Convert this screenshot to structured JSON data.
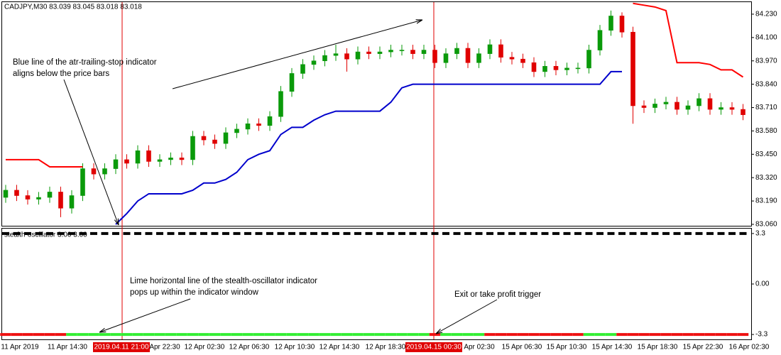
{
  "chart_data": [
    {
      "type": "candlestick",
      "title": "CADJPY,M30  83.039 83.045 83.018 83.018",
      "up_color": "#0a9a0a",
      "down_color": "#e00000",
      "open": [
        83.21,
        83.25,
        83.22,
        83.2,
        83.21,
        83.24,
        83.15,
        83.22,
        83.37,
        83.34,
        83.37,
        83.42,
        83.4,
        83.47,
        83.41,
        83.42,
        83.43,
        83.42,
        83.55,
        83.53,
        83.51,
        83.57,
        83.59,
        83.62,
        83.61,
        83.66,
        83.8,
        83.9,
        83.95,
        83.97,
        84.0,
        84.01,
        83.98,
        84.02,
        84.01,
        84.02,
        84.03,
        84.03,
        84.01,
        84.03,
        83.96,
        84.01,
        84.04,
        83.96,
        84.01,
        84.06,
        83.99,
        83.98,
        83.96,
        83.91,
        83.94,
        83.92,
        83.93,
        83.93,
        84.03,
        84.14,
        84.22,
        84.13,
        83.72,
        83.71,
        83.73,
        83.74,
        83.7,
        83.72,
        83.76,
        83.7,
        83.71,
        83.7
      ],
      "high": [
        83.28,
        83.28,
        83.25,
        83.24,
        83.27,
        83.27,
        83.25,
        83.4,
        83.4,
        83.4,
        83.45,
        83.45,
        83.5,
        83.5,
        83.45,
        83.46,
        83.46,
        83.58,
        83.58,
        83.56,
        83.6,
        83.62,
        83.65,
        83.65,
        83.69,
        83.83,
        83.93,
        83.98,
        84.0,
        84.03,
        84.06,
        84.04,
        84.05,
        84.05,
        84.05,
        84.06,
        84.06,
        84.06,
        84.06,
        84.06,
        84.04,
        84.07,
        84.07,
        84.04,
        84.09,
        84.09,
        84.02,
        84.01,
        83.99,
        83.97,
        83.97,
        83.96,
        83.96,
        84.06,
        84.17,
        84.25,
        84.24,
        84.16,
        83.75,
        83.76,
        83.77,
        83.77,
        83.75,
        83.79,
        83.79,
        83.74,
        83.74,
        83.73
      ],
      "low": [
        83.18,
        83.19,
        83.17,
        83.17,
        83.18,
        83.1,
        83.12,
        83.19,
        83.31,
        83.31,
        83.34,
        83.37,
        83.37,
        83.38,
        83.38,
        83.39,
        83.39,
        83.39,
        83.5,
        83.48,
        83.48,
        83.54,
        83.56,
        83.58,
        83.58,
        83.63,
        83.77,
        83.87,
        83.92,
        83.94,
        83.97,
        83.91,
        83.95,
        83.98,
        83.98,
        83.99,
        84.0,
        83.98,
        83.98,
        83.93,
        83.93,
        83.98,
        83.93,
        83.93,
        83.98,
        83.96,
        83.95,
        83.93,
        83.88,
        83.88,
        83.89,
        83.89,
        83.9,
        83.9,
        84.0,
        84.11,
        84.1,
        83.62,
        83.68,
        83.68,
        83.7,
        83.67,
        83.67,
        83.69,
        83.67,
        83.67,
        83.67,
        83.64
      ],
      "close": [
        83.25,
        83.22,
        83.2,
        83.21,
        83.24,
        83.15,
        83.22,
        83.37,
        83.34,
        83.37,
        83.42,
        83.4,
        83.47,
        83.41,
        83.42,
        83.43,
        83.42,
        83.55,
        83.53,
        83.51,
        83.57,
        83.59,
        83.62,
        83.61,
        83.66,
        83.8,
        83.9,
        83.95,
        83.97,
        84.0,
        84.01,
        83.98,
        84.02,
        84.01,
        84.02,
        84.03,
        84.03,
        84.01,
        84.03,
        83.96,
        84.01,
        84.04,
        83.96,
        84.01,
        84.06,
        83.99,
        83.98,
        83.96,
        83.91,
        83.94,
        83.92,
        83.93,
        83.93,
        84.03,
        84.14,
        84.22,
        84.13,
        83.72,
        83.71,
        83.73,
        83.74,
        83.7,
        83.72,
        83.76,
        83.7,
        83.71,
        83.7,
        83.67
      ],
      "series": [
        {
          "color": "#0000cc",
          "values": [
            null,
            null,
            null,
            null,
            null,
            null,
            null,
            null,
            null,
            null,
            83.06,
            83.12,
            83.19,
            83.23,
            83.23,
            83.23,
            83.23,
            83.25,
            83.29,
            83.29,
            83.31,
            83.35,
            83.42,
            83.45,
            83.47,
            83.56,
            83.6,
            83.6,
            83.64,
            83.67,
            83.69,
            83.69,
            83.69,
            83.69,
            83.69,
            83.74,
            83.82,
            83.84,
            83.84,
            83.84,
            83.84,
            83.84,
            83.84,
            83.84,
            83.84,
            83.84,
            83.84,
            83.84,
            83.84,
            83.84,
            83.84,
            83.84,
            83.84,
            83.84,
            83.84,
            83.91,
            83.91,
            null,
            null,
            null,
            null,
            null,
            null,
            null,
            null,
            null,
            null,
            null
          ]
        },
        {
          "color": "#ff0000",
          "values": [
            83.42,
            83.42,
            83.42,
            83.42,
            83.38,
            83.38,
            83.38,
            83.38,
            null,
            null,
            null,
            null,
            null,
            null,
            null,
            null,
            null,
            null,
            null,
            null,
            null,
            null,
            null,
            null,
            null,
            null,
            null,
            null,
            null,
            null,
            null,
            null,
            null,
            null,
            null,
            null,
            null,
            null,
            null,
            null,
            null,
            null,
            null,
            null,
            null,
            null,
            null,
            null,
            null,
            null,
            null,
            null,
            null,
            null,
            null,
            null,
            null,
            84.29,
            84.28,
            84.27,
            84.25,
            83.96,
            83.96,
            83.96,
            83.95,
            83.92,
            83.92,
            83.88
          ]
        }
      ],
      "ylim": [
        83.052,
        84.297
      ],
      "yticks": [
        {
          "value": 84.23,
          "label": "84.230"
        },
        {
          "value": 84.1,
          "label": "84.100"
        },
        {
          "value": 83.97,
          "label": "83.970"
        },
        {
          "value": 83.84,
          "label": "83.840"
        },
        {
          "value": 83.71,
          "label": "83.710"
        },
        {
          "value": 83.58,
          "label": "83.580"
        },
        {
          "value": 83.45,
          "label": "83.450"
        },
        {
          "value": 83.32,
          "label": "83.320"
        },
        {
          "value": 83.19,
          "label": "83.190"
        },
        {
          "value": 83.06,
          "label": "83.060"
        }
      ],
      "x_labels": [
        "11 Apr 2019",
        "11 Apr 14:30",
        "Apr 22:30",
        "12 Apr 02:30",
        "12 Apr 06:30",
        "12 Apr 10:30",
        "12 Apr 14:30",
        "12 Apr 18:30",
        "Apr 02:30",
        "15 Apr 06:30",
        "15 Apr 10:30",
        "15 Apr 14:30",
        "15 Apr 18:30",
        "15 Apr 22:30",
        "16 Apr 02:30"
      ],
      "cursor_labels": [
        "2019.04.11 21:00",
        "2019.04.15 00:30"
      ],
      "annotations": [
        [
          "Blue line of the atr-trailing-stop indicator",
          "aligns below the price bars"
        ],
        [
          "Lime horizontal line of the stealth-oscillator indicator",
          "pops up within the indicator window"
        ],
        [
          "Exit or take profit trigger"
        ]
      ]
    },
    {
      "type": "oscillator",
      "title": "stealth-oscillator 3.00 3.00",
      "upper": {
        "color": "#000000",
        "values": [
          3.3,
          3.3,
          3.3,
          3.3,
          3.3,
          3.3,
          3.3,
          3.3,
          3.3,
          3.3,
          3.3,
          3.3,
          3.3,
          3.3,
          3.3,
          3.3,
          3.3,
          3.3,
          3.3,
          3.3,
          3.3,
          3.3,
          3.3,
          3.3,
          3.3,
          3.3,
          3.3,
          3.3,
          3.3,
          3.3,
          3.3,
          3.3,
          3.3,
          3.3,
          3.3,
          3.3,
          3.3,
          3.3,
          3.3,
          3.3,
          3.3,
          3.3,
          3.3,
          3.3,
          3.3,
          3.3,
          3.3,
          3.3,
          3.3,
          3.3,
          3.3,
          3.3,
          3.3,
          3.3,
          3.3,
          3.3,
          3.3,
          3.3,
          3.3,
          3.3,
          3.3,
          3.3,
          3.3,
          3.3,
          3.3,
          3.3,
          3.3,
          3.3
        ]
      },
      "lower": {
        "values": [
          -3.3,
          -3.3,
          -3.3,
          -3.3,
          -3.3,
          -3.3,
          -3.3,
          -3.3,
          -3.3,
          -3.3,
          -3.3,
          -3.3,
          -3.3,
          -3.3,
          -3.3,
          -3.3,
          -3.3,
          -3.3,
          -3.3,
          -3.3,
          -3.3,
          -3.3,
          -3.3,
          -3.3,
          -3.3,
          -3.3,
          -3.3,
          -3.3,
          -3.3,
          -3.3,
          -3.3,
          -3.3,
          -3.3,
          -3.3,
          -3.3,
          -3.3,
          -3.3,
          -3.3,
          -3.3,
          -3.3,
          -3.3,
          -3.3,
          -3.3,
          -3.3,
          -3.3,
          -3.3,
          -3.3,
          -3.3,
          -3.3,
          -3.3,
          -3.3,
          -3.3,
          -3.3,
          -3.3,
          -3.3,
          -3.3,
          -3.3,
          -3.3,
          -3.3,
          -3.3,
          -3.3,
          -3.3,
          -3.3,
          -3.3,
          -3.3,
          -3.3,
          -3.3,
          -3.3
        ],
        "colors": [
          "#ee1111",
          "#ee1111",
          "#ee1111",
          "#ee1111",
          "#ee1111",
          "#ee1111",
          "#33ee33",
          "#33ee33",
          "#33ee33",
          "#33ee33",
          "#33ee33",
          "#33ee33",
          "#33ee33",
          "#33ee33",
          "#33ee33",
          "#33ee33",
          "#33ee33",
          "#33ee33",
          "#33ee33",
          "#33ee33",
          "#33ee33",
          "#33ee33",
          "#33ee33",
          "#33ee33",
          "#33ee33",
          "#33ee33",
          "#33ee33",
          "#33ee33",
          "#33ee33",
          "#33ee33",
          "#33ee33",
          "#33ee33",
          "#33ee33",
          "#33ee33",
          "#33ee33",
          "#33ee33",
          "#33ee33",
          "#33ee33",
          "#33ee33",
          "#ee1111",
          "#33ee33",
          "#33ee33",
          "#33ee33",
          "#33ee33",
          "#ee1111",
          "#ee1111",
          "#ee1111",
          "#ee1111",
          "#ee1111",
          "#ee1111",
          "#ee1111",
          "#ee1111",
          "#ee1111",
          "#33ee33",
          "#33ee33",
          "#33ee33",
          "#ee1111",
          "#ee1111",
          "#ee1111",
          "#ee1111",
          "#ee1111",
          "#ee1111",
          "#ee1111",
          "#ee1111",
          "#ee1111",
          "#ee1111",
          "#ee1111",
          "#ee1111"
        ]
      },
      "ylim": [
        -3.62,
        3.62
      ],
      "yticks": [
        3.3,
        {
          "value": 0,
          "label": "0.00"
        },
        -3.3
      ]
    }
  ]
}
